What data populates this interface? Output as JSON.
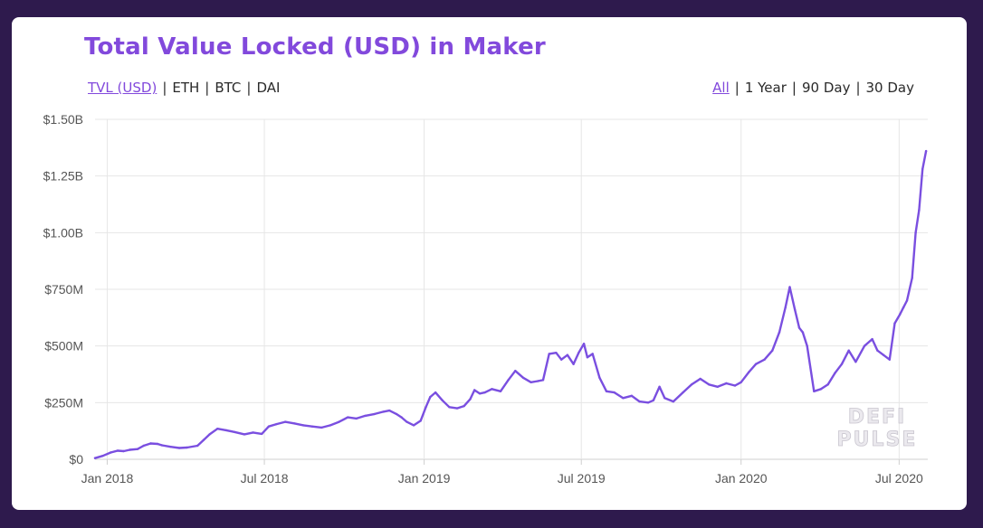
{
  "header": {
    "title": "Total Value Locked (USD) in Maker"
  },
  "unit_tabs": [
    {
      "label": "TVL (USD)",
      "active": true
    },
    {
      "label": "ETH",
      "active": false
    },
    {
      "label": "BTC",
      "active": false
    },
    {
      "label": "DAI",
      "active": false
    }
  ],
  "range_tabs": [
    {
      "label": "All",
      "active": true
    },
    {
      "label": "1 Year",
      "active": false
    },
    {
      "label": "90 Day",
      "active": false
    },
    {
      "label": "30 Day",
      "active": false
    }
  ],
  "watermark": {
    "line1": "DEFI",
    "line2": "PULSE"
  },
  "colors": {
    "accent": "#8249dc",
    "line": "#7a4fe0",
    "background": "#2e1a4d"
  },
  "chart_data": {
    "type": "line",
    "title": "Total Value Locked (USD) in Maker",
    "xlabel": "",
    "ylabel": "",
    "ylim": [
      0,
      1500000000
    ],
    "xlim": [
      "2017-12-18",
      "2020-08-03"
    ],
    "grid": true,
    "y_ticks": [
      {
        "value": 0,
        "label": "$0"
      },
      {
        "value": 250000000,
        "label": "$250M"
      },
      {
        "value": 500000000,
        "label": "$500M"
      },
      {
        "value": 750000000,
        "label": "$750M"
      },
      {
        "value": 1000000000,
        "label": "$1.00B"
      },
      {
        "value": 1250000000,
        "label": "$1.25B"
      },
      {
        "value": 1500000000,
        "label": "$1.50B"
      }
    ],
    "x_ticks": [
      {
        "value": "2018-01-01",
        "label": "Jan 2018"
      },
      {
        "value": "2018-07-01",
        "label": "Jul 2018"
      },
      {
        "value": "2019-01-01",
        "label": "Jan 2019"
      },
      {
        "value": "2019-07-01",
        "label": "Jul 2019"
      },
      {
        "value": "2020-01-01",
        "label": "Jan 2020"
      },
      {
        "value": "2020-07-01",
        "label": "Jul 2020"
      }
    ],
    "series": [
      {
        "x": [
          "2017-12-18",
          "2017-12-27",
          "2018-01-05",
          "2018-01-13",
          "2018-01-20",
          "2018-01-27",
          "2018-02-05",
          "2018-02-12",
          "2018-02-20",
          "2018-02-28",
          "2018-03-05",
          "2018-03-15",
          "2018-03-25",
          "2018-04-03",
          "2018-04-15",
          "2018-04-22",
          "2018-04-29",
          "2018-05-08",
          "2018-05-18",
          "2018-05-28",
          "2018-06-08",
          "2018-06-18",
          "2018-06-28",
          "2018-07-06",
          "2018-07-15",
          "2018-07-25",
          "2018-08-05",
          "2018-08-15",
          "2018-08-25",
          "2018-09-05",
          "2018-09-15",
          "2018-09-25",
          "2018-10-05",
          "2018-10-15",
          "2018-10-25",
          "2018-11-05",
          "2018-11-15",
          "2018-11-22",
          "2018-11-30",
          "2018-12-06",
          "2018-12-12",
          "2018-12-20",
          "2018-12-28",
          "2019-01-03",
          "2019-01-08",
          "2019-01-14",
          "2019-01-22",
          "2019-01-30",
          "2019-02-08",
          "2019-02-16",
          "2019-02-23",
          "2019-02-28",
          "2019-03-06",
          "2019-03-12",
          "2019-03-20",
          "2019-03-30",
          "2019-04-08",
          "2019-04-16",
          "2019-04-25",
          "2019-05-04",
          "2019-05-12",
          "2019-05-18",
          "2019-05-25",
          "2019-06-02",
          "2019-06-08",
          "2019-06-15",
          "2019-06-22",
          "2019-06-28",
          "2019-07-04",
          "2019-07-08",
          "2019-07-14",
          "2019-07-22",
          "2019-07-30",
          "2019-08-08",
          "2019-08-18",
          "2019-08-28",
          "2019-09-06",
          "2019-09-16",
          "2019-09-22",
          "2019-09-29",
          "2019-10-05",
          "2019-10-15",
          "2019-10-26",
          "2019-11-05",
          "2019-11-15",
          "2019-11-25",
          "2019-12-05",
          "2019-12-15",
          "2019-12-25",
          "2020-01-01",
          "2020-01-10",
          "2020-01-18",
          "2020-01-28",
          "2020-02-06",
          "2020-02-14",
          "2020-02-21",
          "2020-02-26",
          "2020-03-03",
          "2020-03-08",
          "2020-03-12",
          "2020-03-17",
          "2020-03-25",
          "2020-04-02",
          "2020-04-10",
          "2020-04-18",
          "2020-04-26",
          "2020-05-04",
          "2020-05-12",
          "2020-05-22",
          "2020-05-31",
          "2020-06-06",
          "2020-06-13",
          "2020-06-20",
          "2020-06-26",
          "2020-07-02",
          "2020-07-06",
          "2020-07-10",
          "2020-07-16",
          "2020-07-20",
          "2020-07-24",
          "2020-07-28",
          "2020-08-01"
        ],
        "values": [
          5000000,
          15000000,
          30000000,
          38000000,
          36000000,
          42000000,
          45000000,
          60000000,
          70000000,
          68000000,
          62000000,
          55000000,
          50000000,
          52000000,
          60000000,
          85000000,
          110000000,
          135000000,
          128000000,
          120000000,
          110000000,
          118000000,
          112000000,
          145000000,
          155000000,
          165000000,
          158000000,
          150000000,
          145000000,
          140000000,
          150000000,
          165000000,
          185000000,
          180000000,
          192000000,
          200000000,
          210000000,
          215000000,
          200000000,
          185000000,
          165000000,
          150000000,
          170000000,
          230000000,
          275000000,
          295000000,
          260000000,
          230000000,
          225000000,
          235000000,
          265000000,
          305000000,
          290000000,
          295000000,
          310000000,
          300000000,
          350000000,
          390000000,
          360000000,
          340000000,
          345000000,
          350000000,
          465000000,
          470000000,
          440000000,
          460000000,
          420000000,
          470000000,
          510000000,
          450000000,
          465000000,
          360000000,
          300000000,
          295000000,
          270000000,
          280000000,
          255000000,
          250000000,
          260000000,
          320000000,
          270000000,
          255000000,
          295000000,
          330000000,
          355000000,
          330000000,
          320000000,
          335000000,
          325000000,
          340000000,
          385000000,
          420000000,
          440000000,
          480000000,
          560000000,
          670000000,
          760000000,
          660000000,
          580000000,
          560000000,
          500000000,
          300000000,
          310000000,
          330000000,
          380000000,
          420000000,
          480000000,
          430000000,
          500000000,
          530000000,
          480000000,
          460000000,
          440000000,
          600000000,
          640000000,
          670000000,
          700000000,
          800000000,
          1000000000,
          1100000000,
          1280000000,
          1360000000
        ]
      }
    ]
  }
}
